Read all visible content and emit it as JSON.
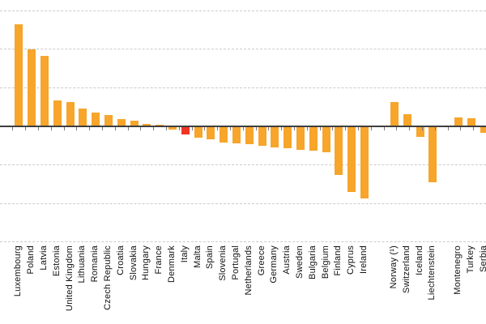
{
  "chart_data": {
    "type": "bar",
    "title": "",
    "xlabel": "",
    "ylabel": "",
    "ylim": [
      -3,
      3
    ],
    "gridline_interval": 1,
    "gridline_values": [
      3,
      2,
      1,
      -1,
      -2,
      -3
    ],
    "grid": "dashed-horizontal",
    "legend_position": "none",
    "y_tick_labels_visible": false,
    "bar_color": "#F7A52B",
    "highlight_color": "#EE3424",
    "axis_color": "#3F3F3F",
    "gridline_color": "#CBCBCB",
    "highlight_category": "Italy",
    "categories": [
      "Luxembourg",
      "Poland",
      "Latvia",
      "Estonia",
      "United Kingdom",
      "Lithuania",
      "Romania",
      "Czech Republic",
      "Croatia",
      "Slovakia",
      "Hungary",
      "France",
      "Denmark",
      "Italy",
      "Malta",
      "Spain",
      "Slovenia",
      "Portugal",
      "Netherlands",
      "Greece",
      "Germany",
      "Austria",
      "Sweden",
      "Bulgaria",
      "Belgium",
      "Finland",
      "Cyprus",
      "Ireland",
      "Norway (¹)",
      "Switzerland",
      "Iceland",
      "Liechtenstein",
      "Montenegro",
      "Turkey",
      "Serbia"
    ],
    "values": [
      2.64,
      2.0,
      1.83,
      0.67,
      0.64,
      0.46,
      0.36,
      0.29,
      0.19,
      0.14,
      0.07,
      0.04,
      -0.08,
      -0.22,
      -0.29,
      -0.33,
      -0.41,
      -0.44,
      -0.46,
      -0.5,
      -0.54,
      -0.57,
      -0.61,
      -0.64,
      -0.67,
      -1.26,
      -1.7,
      -1.88,
      0.63,
      0.31,
      -0.27,
      -1.45,
      0.24,
      0.21,
      -0.17
    ],
    "groups": [
      {
        "name": "eu-members",
        "items": [
          {
            "label": "Luxembourg",
            "value": 2.64
          },
          {
            "label": "Poland",
            "value": 2.0
          },
          {
            "label": "Latvia",
            "value": 1.83
          },
          {
            "label": "Estonia",
            "value": 0.67
          },
          {
            "label": "United Kingdom",
            "value": 0.64
          },
          {
            "label": "Lithuania",
            "value": 0.46
          },
          {
            "label": "Romania",
            "value": 0.36
          },
          {
            "label": "Czech Republic",
            "value": 0.29
          },
          {
            "label": "Croatia",
            "value": 0.19
          },
          {
            "label": "Slovakia",
            "value": 0.14
          },
          {
            "label": "Hungary",
            "value": 0.07
          },
          {
            "label": "France",
            "value": 0.04
          },
          {
            "label": "Denmark",
            "value": -0.08
          },
          {
            "label": "Italy",
            "value": -0.22,
            "highlight": true
          },
          {
            "label": "Malta",
            "value": -0.29
          },
          {
            "label": "Spain",
            "value": -0.33
          },
          {
            "label": "Slovenia",
            "value": -0.41
          },
          {
            "label": "Portugal",
            "value": -0.44
          },
          {
            "label": "Netherlands",
            "value": -0.46
          },
          {
            "label": "Greece",
            "value": -0.5
          },
          {
            "label": "Germany",
            "value": -0.54
          },
          {
            "label": "Austria",
            "value": -0.57
          },
          {
            "label": "Sweden",
            "value": -0.61
          },
          {
            "label": "Bulgaria",
            "value": -0.64
          },
          {
            "label": "Belgium",
            "value": -0.67
          },
          {
            "label": "Finland",
            "value": -1.26
          },
          {
            "label": "Cyprus",
            "value": -1.7
          },
          {
            "label": "Ireland",
            "value": -1.88
          }
        ]
      },
      {
        "name": "efta",
        "items": [
          {
            "label": "Norway (¹)",
            "value": 0.63
          },
          {
            "label": "Switzerland",
            "value": 0.31
          },
          {
            "label": "Iceland",
            "value": -0.27
          },
          {
            "label": "Liechtenstein",
            "value": -1.45
          }
        ]
      },
      {
        "name": "candidates",
        "items": [
          {
            "label": "Montenegro",
            "value": 0.24
          },
          {
            "label": "Turkey",
            "value": 0.21
          },
          {
            "label": "Serbia",
            "value": -0.17
          }
        ]
      }
    ]
  }
}
